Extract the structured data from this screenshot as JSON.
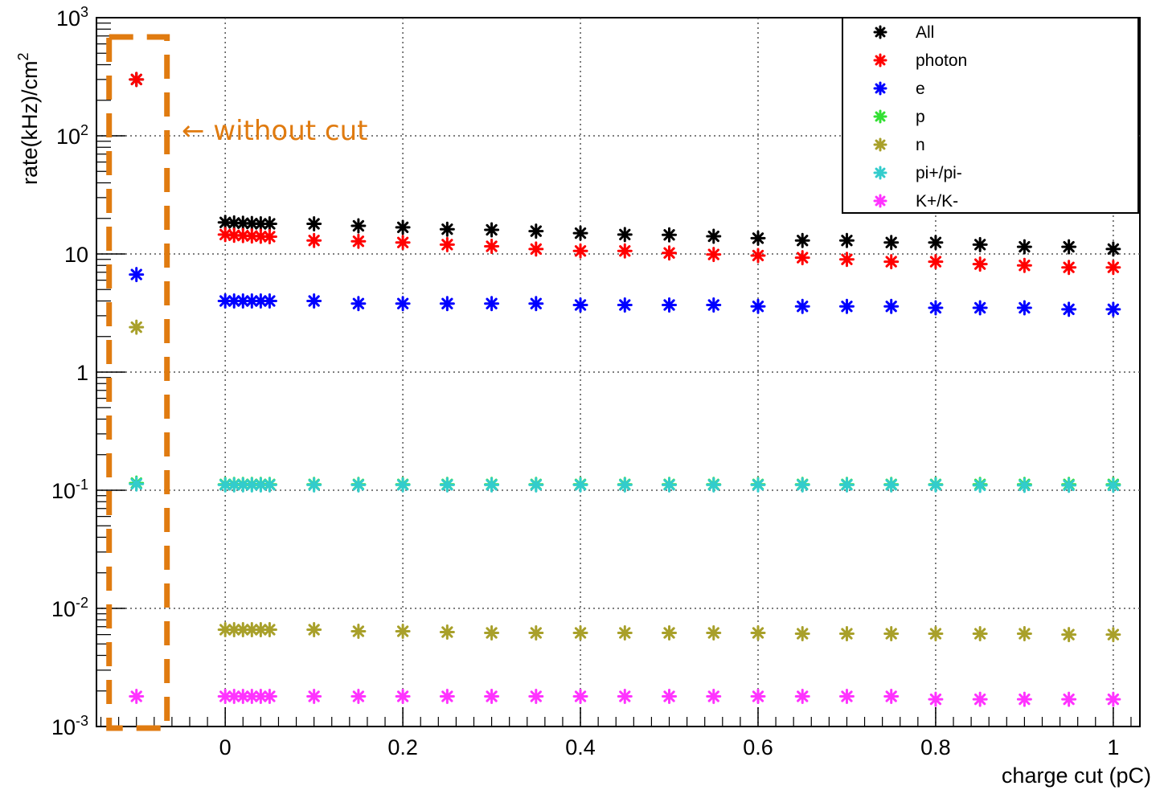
{
  "chart_data": {
    "type": "scatter",
    "xlabel": "charge cut (pC)",
    "ylabel": "rate(kHz)/cm",
    "ylabel_sup": "2",
    "xlim": [
      -0.145,
      1.03
    ],
    "ylim": [
      0.001,
      1000
    ],
    "yscale": "log",
    "grid": true,
    "legend_position": "top-right",
    "x_ticks": [
      {
        "value": 0,
        "label": "0"
      },
      {
        "value": 0.2,
        "label": "0.2"
      },
      {
        "value": 0.4,
        "label": "0.4"
      },
      {
        "value": 0.6,
        "label": "0.6"
      },
      {
        "value": 0.8,
        "label": "0.8"
      },
      {
        "value": 1,
        "label": "1"
      }
    ],
    "y_ticks": [
      {
        "value": 0.001,
        "base": "10",
        "exp": "-3"
      },
      {
        "value": 0.01,
        "base": "10",
        "exp": "-2"
      },
      {
        "value": 0.1,
        "base": "10",
        "exp": "-1"
      },
      {
        "value": 1,
        "base": "1",
        "exp": ""
      },
      {
        "value": 10,
        "base": "10",
        "exp": ""
      },
      {
        "value": 100,
        "base": "10",
        "exp": "2"
      },
      {
        "value": 1000,
        "base": "10",
        "exp": "3"
      }
    ],
    "x": [
      -0.1,
      0,
      0.01,
      0.02,
      0.03,
      0.04,
      0.05,
      0.1,
      0.15,
      0.2,
      0.25,
      0.3,
      0.35,
      0.4,
      0.45,
      0.5,
      0.55,
      0.6,
      0.65,
      0.7,
      0.75,
      0.8,
      0.85,
      0.9,
      0.95,
      1.0
    ],
    "series": [
      {
        "name": "All",
        "color": "#000000",
        "values": [
          300,
          18.5,
          18.3,
          18.2,
          18.1,
          18.0,
          18.0,
          18.0,
          17.3,
          16.8,
          16.2,
          16.0,
          15.6,
          15.0,
          14.6,
          14.5,
          14.1,
          13.6,
          13.0,
          13.0,
          12.5,
          12.5,
          12.0,
          11.5,
          11.5,
          11.0
        ]
      },
      {
        "name": "photon",
        "color": "#ff0000",
        "values": [
          300,
          14.6,
          14.4,
          14.3,
          14.2,
          14.1,
          14.0,
          13.0,
          12.8,
          12.5,
          12.0,
          11.6,
          11.0,
          10.6,
          10.6,
          10.2,
          9.9,
          9.7,
          9.3,
          9.0,
          8.6,
          8.6,
          8.2,
          8.0,
          7.7,
          7.7
        ]
      },
      {
        "name": "e",
        "color": "#0000ff",
        "values": [
          6.7,
          4.0,
          4.0,
          4.0,
          4.0,
          4.0,
          4.0,
          4.0,
          3.8,
          3.8,
          3.8,
          3.8,
          3.8,
          3.7,
          3.7,
          3.7,
          3.7,
          3.6,
          3.6,
          3.6,
          3.6,
          3.5,
          3.5,
          3.5,
          3.4,
          3.4
        ]
      },
      {
        "name": "p",
        "color": "#33e033",
        "values": [
          0.115,
          0.112,
          0.112,
          0.112,
          0.112,
          0.112,
          0.112,
          0.112,
          0.112,
          0.112,
          0.112,
          0.112,
          0.112,
          0.112,
          0.112,
          0.112,
          0.112,
          0.112,
          0.112,
          0.112,
          0.112,
          0.112,
          0.112,
          0.112,
          0.112,
          0.112
        ]
      },
      {
        "name": "n",
        "color": "#a8a02a",
        "values": [
          2.4,
          0.0066,
          0.0066,
          0.0066,
          0.0066,
          0.0066,
          0.0066,
          0.0066,
          0.0064,
          0.0064,
          0.0063,
          0.0062,
          0.0062,
          0.0062,
          0.0062,
          0.0062,
          0.0062,
          0.0062,
          0.0061,
          0.0061,
          0.0061,
          0.0061,
          0.0061,
          0.0061,
          0.006,
          0.006
        ]
      },
      {
        "name": "pi+/pi-",
        "color": "#33cccc",
        "values": [
          0.113,
          0.111,
          0.111,
          0.111,
          0.111,
          0.111,
          0.111,
          0.111,
          0.111,
          0.111,
          0.111,
          0.111,
          0.111,
          0.111,
          0.111,
          0.111,
          0.111,
          0.111,
          0.111,
          0.111,
          0.111,
          0.111,
          0.11,
          0.11,
          0.11,
          0.11
        ]
      },
      {
        "name": "K+/K-",
        "color": "#ff33ff",
        "values": [
          0.0018,
          0.0018,
          0.0018,
          0.0018,
          0.0018,
          0.0018,
          0.0018,
          0.0018,
          0.0018,
          0.0018,
          0.0018,
          0.0018,
          0.0018,
          0.0018,
          0.0018,
          0.0018,
          0.0018,
          0.0018,
          0.0018,
          0.0018,
          0.0018,
          0.0017,
          0.0017,
          0.0017,
          0.0017,
          0.0017
        ]
      }
    ],
    "annotation": {
      "text": "← without cut",
      "color": "#e07b10",
      "highlight_x": -0.1
    }
  }
}
